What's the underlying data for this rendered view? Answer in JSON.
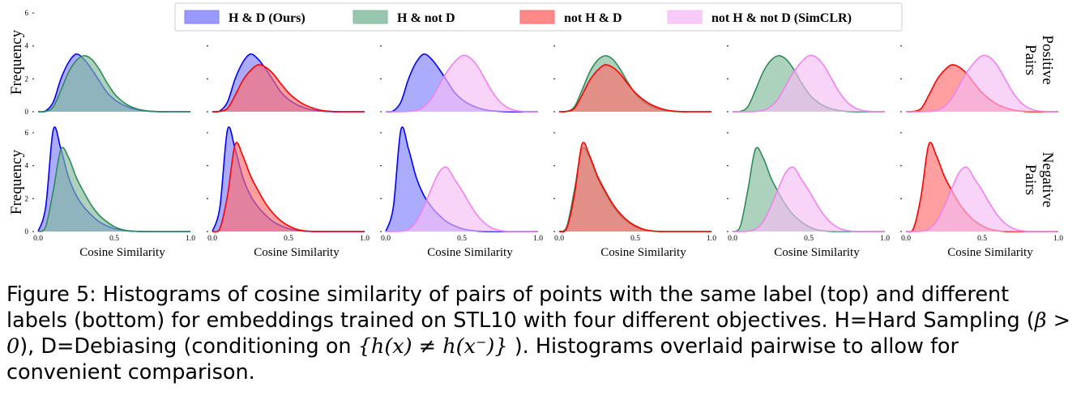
{
  "legend": {
    "items": [
      {
        "label": "H & D (Ours)",
        "color": "#0000ff"
      },
      {
        "label": "H & not D",
        "color": "#2e8b57"
      },
      {
        "label": "not H & D",
        "color": "#ff0000"
      },
      {
        "label": "not H & not D (SimCLR)",
        "color": "#ee82ee"
      }
    ]
  },
  "caption": {
    "label": "Figure 5:",
    "text_before": "Histograms of cosine similarity of pairs of points with the same label (top) and different labels (bottom) for embeddings trained on STL10 with four different objectives. H=Hard Sampling (",
    "beta": "β > 0",
    "text_mid": "), D=Debiasing (conditioning on ",
    "condition": "{h(x) ≠ h(x⁻)}",
    "text_after": " ). Histograms overlaid pairwise to allow for convenient comparison."
  },
  "chart_data": {
    "type": "area",
    "xlabel": "Cosine Similarity",
    "ylabel": "Frequency",
    "xlim": [
      0.0,
      1.0
    ],
    "ylim": [
      0,
      6
    ],
    "xticks": [
      "0.0",
      "0.5",
      "1.0"
    ],
    "yticks": [
      "0",
      "2",
      "4",
      "6"
    ],
    "row_labels": [
      [
        "Positive",
        "Pairs"
      ],
      [
        "Negative",
        "Pairs"
      ]
    ],
    "series_colors": {
      "HD": {
        "stroke": "#0000ff",
        "fill": "#8080ff"
      },
      "HnD": {
        "stroke": "#2e8b57",
        "fill": "#7fb89a"
      },
      "nHD": {
        "stroke": "#ff0000",
        "fill": "#ff6b6b"
      },
      "nHnD": {
        "stroke": "#ee82ee",
        "fill": "#f6bdf6"
      }
    },
    "columns": [
      [
        "HD",
        "HnD"
      ],
      [
        "HD",
        "nHD"
      ],
      [
        "HD",
        "nHnD"
      ],
      [
        "HnD",
        "nHD"
      ],
      [
        "HnD",
        "nHnD"
      ],
      [
        "nHD",
        "nHnD"
      ]
    ],
    "x": [
      0.0,
      0.05,
      0.1,
      0.15,
      0.2,
      0.25,
      0.3,
      0.35,
      0.4,
      0.45,
      0.5,
      0.55,
      0.6,
      0.65,
      0.7,
      0.75,
      0.8,
      0.85,
      0.9,
      0.95,
      1.0
    ],
    "distributions": {
      "positive": {
        "HD": [
          0,
          0.05,
          0.6,
          2.0,
          3.0,
          3.5,
          3.2,
          2.6,
          1.9,
          1.2,
          0.75,
          0.45,
          0.25,
          0.12,
          0.05,
          0.02,
          0,
          0,
          0,
          0,
          0
        ],
        "HnD": [
          0,
          0.02,
          0.3,
          1.3,
          2.4,
          3.1,
          3.4,
          3.2,
          2.6,
          1.8,
          1.1,
          0.65,
          0.35,
          0.17,
          0.07,
          0.02,
          0,
          0,
          0,
          0,
          0
        ],
        "nHD": [
          0,
          0.02,
          0.2,
          1.0,
          1.9,
          2.5,
          2.85,
          2.7,
          2.3,
          1.7,
          1.15,
          0.75,
          0.45,
          0.25,
          0.11,
          0.04,
          0.01,
          0,
          0,
          0,
          0
        ],
        "nHnD": [
          0,
          0,
          0,
          0.02,
          0.08,
          0.3,
          0.8,
          1.6,
          2.4,
          3.0,
          3.4,
          3.3,
          2.8,
          2.0,
          1.2,
          0.6,
          0.25,
          0.08,
          0.02,
          0,
          0
        ]
      },
      "negative": {
        "HD": [
          0,
          1.5,
          6.2,
          5.0,
          3.3,
          2.2,
          1.5,
          1.0,
          0.6,
          0.35,
          0.18,
          0.08,
          0.03,
          0.01,
          0,
          0,
          0,
          0,
          0,
          0,
          0
        ],
        "HnD": [
          0,
          0.3,
          2.5,
          5.0,
          4.5,
          3.3,
          2.4,
          1.6,
          1.0,
          0.6,
          0.3,
          0.12,
          0.04,
          0.01,
          0,
          0,
          0,
          0,
          0,
          0,
          0
        ],
        "nHD": [
          0,
          0.2,
          2.2,
          5.3,
          4.6,
          3.4,
          2.5,
          1.7,
          1.1,
          0.65,
          0.35,
          0.15,
          0.05,
          0.01,
          0,
          0,
          0,
          0,
          0,
          0,
          0
        ],
        "nHnD": [
          0,
          0,
          0.02,
          0.15,
          0.6,
          1.5,
          2.6,
          3.6,
          3.9,
          3.2,
          2.5,
          1.7,
          1.0,
          0.5,
          0.2,
          0.06,
          0.01,
          0,
          0,
          0,
          0
        ]
      }
    }
  }
}
